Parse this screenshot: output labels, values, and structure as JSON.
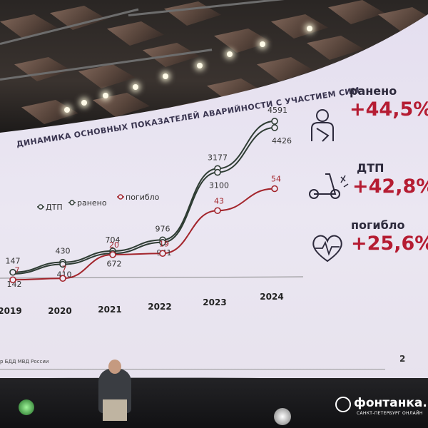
{
  "slide": {
    "title": "ДИНАМИКА ОСНОВНЫХ ПОКАЗАТЕЛЕЙ АВАРИЙНОСТИ С УЧАСТИЕМ СИМ",
    "source": "р БДД МВД России",
    "page": "2"
  },
  "stats": [
    {
      "label": "ранено",
      "value": "+44,5%",
      "icon": "injured-person-icon"
    },
    {
      "label": "ДТП",
      "value": "+42,8%",
      "icon": "scooter-crash-icon"
    },
    {
      "label": "погибло",
      "value": "+25,6%",
      "icon": "heart-pulse-icon"
    }
  ],
  "watermark": {
    "brand": "фонтанка.ру",
    "sub": "САНКТ-ПЕТЕРБУРГ ОНЛАЙН"
  },
  "colors": {
    "dtp": "#2f3d34",
    "raneno": "#2f3d34",
    "pogiblo": "#a3252c",
    "accent": "#b51c32"
  },
  "chart_data": {
    "type": "line",
    "categories": [
      "2019",
      "2020",
      "2021",
      "2022",
      "2023",
      "2024"
    ],
    "legend": [
      "ДТП",
      "ранено",
      "погибло"
    ],
    "series": [
      {
        "name": "ДТП",
        "values": [
          142,
          410,
          672,
          941,
          3100,
          4426
        ]
      },
      {
        "name": "ранено",
        "values": [
          147,
          430,
          704,
          976,
          3177,
          4591
        ]
      },
      {
        "name": "погибло",
        "values": [
          7,
          7,
          20,
          19,
          43,
          54
        ]
      }
    ]
  }
}
